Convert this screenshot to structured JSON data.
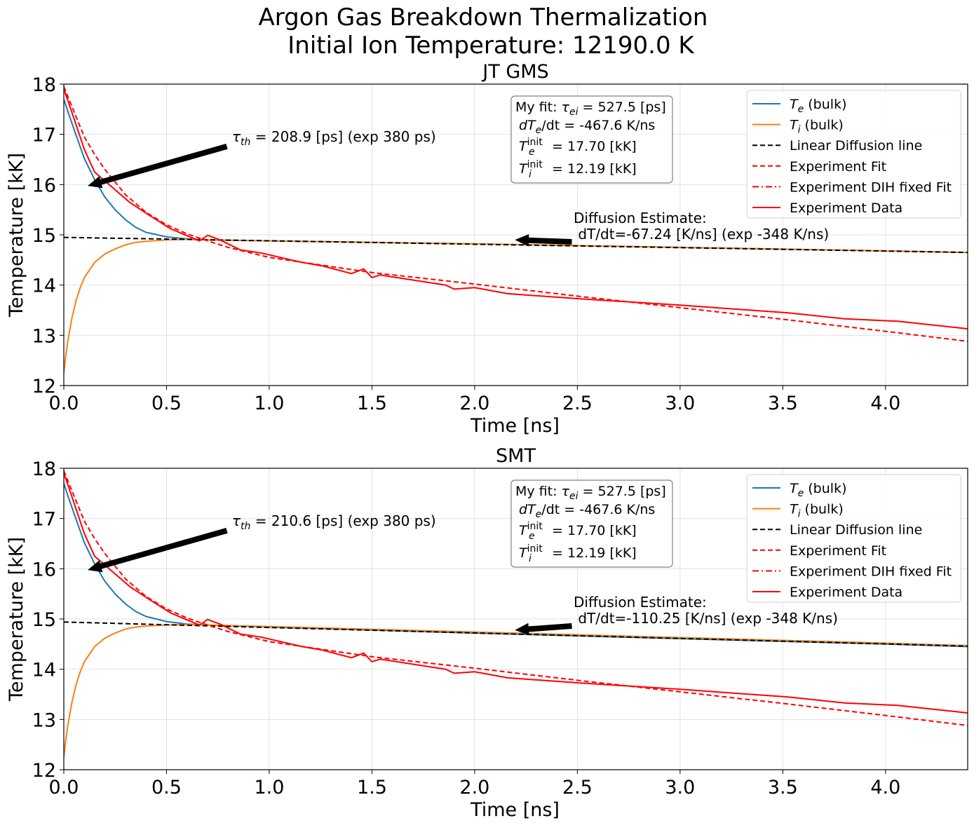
{
  "figure": {
    "title_line1": "Argon Gas Breakdown Thermalization",
    "title_line2": "Initial Ion Temperature: 12190.0 K"
  },
  "legend": {
    "entries": [
      {
        "label": "T_e (bulk)",
        "symbol": "T",
        "sub": "e",
        "rest": " (bulk)",
        "color": "#1f77b4",
        "style": "solid"
      },
      {
        "label": "T_i (bulk)",
        "symbol": "T",
        "sub": "i",
        "rest": " (bulk)",
        "color": "#ff7f0e",
        "style": "solid"
      },
      {
        "label": "Linear Diffusion line",
        "color": "#000000",
        "style": "dashed"
      },
      {
        "label": "Experiment Fit",
        "color": "#ff0000",
        "style": "dashed"
      },
      {
        "label": "Experiment DIH fixed Fit",
        "color": "#ff0000",
        "style": "dashdot"
      },
      {
        "label": "Experiment Data",
        "color": "#ff0000",
        "style": "solid"
      }
    ]
  },
  "chart_data": [
    {
      "type": "line",
      "title": "JT GMS",
      "xlabel": "Time [ns]",
      "ylabel": "Temperature [kK]",
      "xlim": [
        0,
        4.4
      ],
      "ylim": [
        12,
        18
      ],
      "xticks": [
        "0.0",
        "0.5",
        "1.0",
        "1.5",
        "2.0",
        "2.5",
        "3.0",
        "3.5",
        "4.0"
      ],
      "yticks": [
        "12",
        "13",
        "14",
        "15",
        "16",
        "17",
        "18"
      ],
      "grid": true,
      "legend_position": "upper-right",
      "info_box": {
        "line1_prefix": "My fit: ",
        "line1_var": "τ",
        "line1_sub": "ei",
        "line1_value": " = 527.5 [ps]",
        "line2_prefix": "dT",
        "line2_sub": "e",
        "line2_value": "/dt = -467.6 K/ns",
        "line3_sub": "e",
        "line3_sup": "init",
        "line3_value": " = 17.70 [kK]",
        "line4_sub": "i",
        "line4_sup": "init",
        "line4_value": " = 12.19 [kK]"
      },
      "tau_annotation": {
        "symbol": "τ",
        "sub": "th",
        "text": " = 208.9 [ps] (exp 380 ps)",
        "arrow_to": [
          0.12,
          15.98
        ]
      },
      "diffusion_annotation": {
        "line1": "Diffusion Estimate:",
        "line2": " dT/dt=-67.24 [K/ns] (exp -348 K/ns)",
        "arrow_to": [
          2.2,
          14.9
        ]
      },
      "series": [
        {
          "name": "T_e (bulk)",
          "color": "#1f77b4",
          "style": "solid",
          "x": [
            0,
            0.02,
            0.05,
            0.08,
            0.1,
            0.15,
            0.2,
            0.25,
            0.3,
            0.35,
            0.4,
            0.5,
            0.6,
            0.7,
            1.0,
            2.0,
            3.0,
            4.0,
            4.4
          ],
          "y": [
            17.7,
            17.45,
            17.1,
            16.75,
            16.52,
            16.1,
            15.75,
            15.5,
            15.3,
            15.15,
            15.05,
            14.96,
            14.92,
            14.9,
            14.88,
            14.82,
            14.75,
            14.68,
            14.65
          ]
        },
        {
          "name": "T_i (bulk)",
          "color": "#ff7f0e",
          "style": "solid",
          "x": [
            0,
            0.01,
            0.02,
            0.04,
            0.06,
            0.08,
            0.1,
            0.15,
            0.2,
            0.25,
            0.3,
            0.35,
            0.4,
            0.5,
            0.6,
            0.7,
            1.0,
            2.0,
            3.0,
            4.0,
            4.4
          ],
          "y": [
            12.25,
            12.6,
            12.9,
            13.35,
            13.7,
            13.95,
            14.15,
            14.45,
            14.62,
            14.72,
            14.8,
            14.85,
            14.87,
            14.9,
            14.91,
            14.9,
            14.88,
            14.82,
            14.75,
            14.68,
            14.65
          ]
        },
        {
          "name": "Linear Diffusion line",
          "color": "#000000",
          "style": "dashed",
          "x": [
            0,
            4.4
          ],
          "y": [
            14.95,
            14.65
          ]
        },
        {
          "name": "Experiment Fit",
          "color": "#ff0000",
          "style": "dashed",
          "x": [
            0,
            0.05,
            0.1,
            0.15,
            0.2,
            0.3,
            0.4,
            0.5,
            0.6,
            0.7,
            0.8,
            1.0,
            1.25,
            1.5,
            2.0,
            2.5,
            3.0,
            3.5,
            4.0,
            4.4
          ],
          "y": [
            17.95,
            17.45,
            16.95,
            16.6,
            16.3,
            15.8,
            15.45,
            15.2,
            15.02,
            14.88,
            14.75,
            14.55,
            14.4,
            14.25,
            14.02,
            13.78,
            13.55,
            13.32,
            13.08,
            12.88
          ]
        },
        {
          "name": "Experiment Data",
          "color": "#ff0000",
          "style": "solid",
          "x": [
            0,
            0.03,
            0.1,
            0.15,
            0.32,
            0.42,
            0.52,
            0.66,
            0.7,
            0.76,
            0.86,
            0.96,
            1.16,
            1.26,
            1.4,
            1.46,
            1.5,
            1.54,
            1.86,
            1.9,
            2.0,
            2.16,
            2.5,
            3.0,
            3.52,
            3.8,
            4.06,
            4.4
          ],
          "y": [
            17.9,
            17.55,
            16.7,
            16.25,
            15.65,
            15.38,
            15.12,
            14.88,
            14.99,
            14.9,
            14.7,
            14.64,
            14.45,
            14.38,
            14.23,
            14.32,
            14.15,
            14.2,
            14.0,
            13.92,
            13.95,
            13.83,
            13.73,
            13.6,
            13.45,
            13.33,
            13.28,
            13.13
          ]
        }
      ]
    },
    {
      "type": "line",
      "title": "SMT",
      "xlabel": "Time [ns]",
      "ylabel": "Temperature [kK]",
      "xlim": [
        0,
        4.4
      ],
      "ylim": [
        12,
        18
      ],
      "xticks": [
        "0.0",
        "0.5",
        "1.0",
        "1.5",
        "2.0",
        "2.5",
        "3.0",
        "3.5",
        "4.0"
      ],
      "yticks": [
        "12",
        "13",
        "14",
        "15",
        "16",
        "17",
        "18"
      ],
      "grid": true,
      "legend_position": "upper-right",
      "info_box": {
        "line1_prefix": "My fit: ",
        "line1_var": "τ",
        "line1_sub": "ei",
        "line1_value": " = 527.5 [ps]",
        "line2_prefix": "dT",
        "line2_sub": "e",
        "line2_value": "/dt = -467.6 K/ns",
        "line3_sub": "e",
        "line3_sup": "init",
        "line3_value": " = 17.70 [kK]",
        "line4_sub": "i",
        "line4_sup": "init",
        "line4_value": " = 12.19 [kK]"
      },
      "tau_annotation": {
        "symbol": "τ",
        "sub": "th",
        "text": " = 210.6 [ps] (exp 380 ps)",
        "arrow_to": [
          0.12,
          15.98
        ]
      },
      "diffusion_annotation": {
        "line1": "Diffusion Estimate:",
        "line2": " dT/dt=-110.25 [K/ns] (exp -348 K/ns)",
        "arrow_to": [
          2.2,
          14.78
        ]
      },
      "series": [
        {
          "name": "T_e (bulk)",
          "color": "#1f77b4",
          "style": "solid",
          "x": [
            0,
            0.02,
            0.05,
            0.08,
            0.1,
            0.15,
            0.2,
            0.25,
            0.3,
            0.35,
            0.4,
            0.5,
            0.6,
            0.7,
            1.0,
            2.0,
            3.0,
            4.0,
            4.4
          ],
          "y": [
            17.7,
            17.45,
            17.1,
            16.75,
            16.52,
            16.1,
            15.75,
            15.5,
            15.3,
            15.15,
            15.05,
            14.95,
            14.9,
            14.88,
            14.84,
            14.72,
            14.61,
            14.5,
            14.45
          ]
        },
        {
          "name": "T_i (bulk)",
          "color": "#ff7f0e",
          "style": "solid",
          "x": [
            0,
            0.01,
            0.02,
            0.04,
            0.06,
            0.08,
            0.1,
            0.15,
            0.2,
            0.25,
            0.3,
            0.35,
            0.4,
            0.5,
            0.6,
            0.7,
            1.0,
            2.0,
            3.0,
            4.0,
            4.4
          ],
          "y": [
            12.25,
            12.6,
            12.9,
            13.35,
            13.7,
            13.95,
            14.15,
            14.45,
            14.62,
            14.72,
            14.8,
            14.84,
            14.86,
            14.88,
            14.89,
            14.88,
            14.85,
            14.74,
            14.63,
            14.52,
            14.47
          ]
        },
        {
          "name": "Linear Diffusion line",
          "color": "#000000",
          "style": "dashed",
          "x": [
            0,
            4.4
          ],
          "y": [
            14.94,
            14.46
          ]
        },
        {
          "name": "Experiment Fit",
          "color": "#ff0000",
          "style": "dashed",
          "x": [
            0,
            0.05,
            0.1,
            0.15,
            0.2,
            0.3,
            0.4,
            0.5,
            0.6,
            0.7,
            0.8,
            1.0,
            1.25,
            1.5,
            2.0,
            2.5,
            3.0,
            3.5,
            4.0,
            4.4
          ],
          "y": [
            17.95,
            17.45,
            16.95,
            16.6,
            16.3,
            15.8,
            15.45,
            15.2,
            15.02,
            14.88,
            14.75,
            14.55,
            14.4,
            14.25,
            14.02,
            13.78,
            13.55,
            13.32,
            13.08,
            12.88
          ]
        },
        {
          "name": "Experiment Data",
          "color": "#ff0000",
          "style": "solid",
          "x": [
            0,
            0.03,
            0.1,
            0.15,
            0.32,
            0.42,
            0.52,
            0.66,
            0.7,
            0.76,
            0.86,
            0.96,
            1.16,
            1.26,
            1.4,
            1.46,
            1.5,
            1.54,
            1.86,
            1.9,
            2.0,
            2.16,
            2.5,
            3.0,
            3.52,
            3.8,
            4.06,
            4.4
          ],
          "y": [
            17.9,
            17.55,
            16.7,
            16.25,
            15.65,
            15.38,
            15.12,
            14.88,
            14.99,
            14.9,
            14.7,
            14.64,
            14.45,
            14.38,
            14.23,
            14.32,
            14.15,
            14.2,
            14.0,
            13.92,
            13.95,
            13.83,
            13.73,
            13.6,
            13.45,
            13.33,
            13.28,
            13.13
          ]
        }
      ]
    }
  ]
}
